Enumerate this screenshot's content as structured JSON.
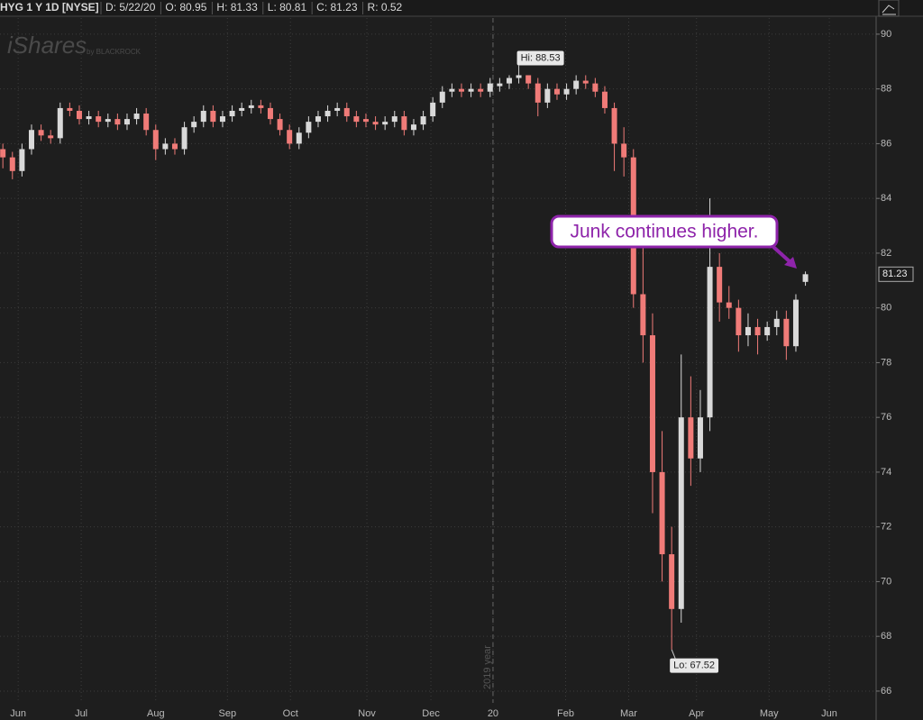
{
  "header": {
    "symbol": "HYG 1 Y 1D [NYSE]",
    "fields": [
      "D: 5/22/20",
      "O: 80.95",
      "H: 81.33",
      "L: 80.81",
      "C: 81.23",
      "R: 0.52"
    ],
    "watermark": "iShares",
    "watermark_sub": "by BLACKROCK"
  },
  "chart_data": {
    "type": "candlestick",
    "x": [
      0,
      1,
      2,
      3,
      4,
      5,
      6,
      7,
      8,
      9,
      10,
      11,
      12,
      13,
      14,
      15,
      16,
      17,
      18,
      19,
      20,
      21,
      22,
      23,
      24,
      25,
      26,
      27,
      28,
      29,
      30,
      31,
      32,
      33,
      34,
      35,
      36,
      37,
      38,
      39,
      40,
      41,
      42,
      43,
      44,
      45,
      46,
      47,
      48,
      49,
      50,
      51,
      52,
      53,
      54,
      55,
      56,
      57,
      58,
      59,
      60,
      61,
      62,
      63,
      64,
      65,
      66,
      67,
      68,
      69,
      70,
      71,
      72,
      73,
      74,
      75,
      76,
      77,
      78,
      79,
      80,
      81,
      82,
      83,
      84
    ],
    "open": [
      85.8,
      85.5,
      85.0,
      85.8,
      86.5,
      86.3,
      86.2,
      87.3,
      87.2,
      86.9,
      87.0,
      86.8,
      86.9,
      86.7,
      86.9,
      87.1,
      86.5,
      85.8,
      86.0,
      85.8,
      86.6,
      86.8,
      87.2,
      86.8,
      87.0,
      87.2,
      87.3,
      87.4,
      87.3,
      86.9,
      86.5,
      86.0,
      86.4,
      86.8,
      87.0,
      87.2,
      87.3,
      87.0,
      86.9,
      86.8,
      86.7,
      86.8,
      87.0,
      86.5,
      86.7,
      87.0,
      87.5,
      87.9,
      88.0,
      87.9,
      88.0,
      87.9,
      88.1,
      88.2,
      88.4,
      88.5,
      88.2,
      87.5,
      88.0,
      87.8,
      88.0,
      88.3,
      88.2,
      87.9,
      87.3,
      86.0,
      85.5,
      80.5,
      79.0,
      74.0,
      71.0,
      69.0,
      76.0,
      74.5,
      76.0,
      81.5,
      80.2,
      80.0,
      79.0,
      79.3,
      79.0,
      79.3,
      79.6,
      78.6,
      80.95
    ],
    "high": [
      86.0,
      85.7,
      86.0,
      86.7,
      86.7,
      86.5,
      87.5,
      87.5,
      87.4,
      87.2,
      87.2,
      87.1,
      87.1,
      87.1,
      87.3,
      87.3,
      86.7,
      86.2,
      86.2,
      86.8,
      87.0,
      87.4,
      87.4,
      87.2,
      87.4,
      87.5,
      87.6,
      87.6,
      87.5,
      87.1,
      86.7,
      86.6,
      87.0,
      87.2,
      87.4,
      87.5,
      87.5,
      87.2,
      87.1,
      87.0,
      87.0,
      87.2,
      87.2,
      86.9,
      87.2,
      87.7,
      88.1,
      88.2,
      88.2,
      88.2,
      88.2,
      88.4,
      88.4,
      88.5,
      88.53,
      88.5,
      88.4,
      88.2,
      88.2,
      88.2,
      88.5,
      88.5,
      88.4,
      88.1,
      87.5,
      86.6,
      85.8,
      82.5,
      79.8,
      75.5,
      72.0,
      78.3,
      77.5,
      77.0,
      84.0,
      82.0,
      80.8,
      80.3,
      79.8,
      79.6,
      79.5,
      79.9,
      79.9,
      80.5,
      81.33
    ],
    "low": [
      85.1,
      84.7,
      84.8,
      85.6,
      86.1,
      86.0,
      86.0,
      87.0,
      86.7,
      86.7,
      86.6,
      86.6,
      86.5,
      86.5,
      86.7,
      86.3,
      85.4,
      85.6,
      85.6,
      85.6,
      86.4,
      86.6,
      86.6,
      86.6,
      86.8,
      87.0,
      87.1,
      87.1,
      86.7,
      86.3,
      85.8,
      85.8,
      86.2,
      86.6,
      86.8,
      87.0,
      86.8,
      86.6,
      86.6,
      86.5,
      86.5,
      86.6,
      86.3,
      86.3,
      86.5,
      86.8,
      87.3,
      87.7,
      87.7,
      87.7,
      87.7,
      87.7,
      87.9,
      88.0,
      88.2,
      88.0,
      87.0,
      87.3,
      87.6,
      87.6,
      87.8,
      88.0,
      87.7,
      87.1,
      85.0,
      84.8,
      80.0,
      78.0,
      72.5,
      70.0,
      67.52,
      68.5,
      73.5,
      74.0,
      75.5,
      79.5,
      79.6,
      78.4,
      78.6,
      78.3,
      78.8,
      79.0,
      78.1,
      78.4,
      80.81
    ],
    "close": [
      85.5,
      85.0,
      85.8,
      86.5,
      86.3,
      86.2,
      87.3,
      87.2,
      86.9,
      87.0,
      86.8,
      86.9,
      86.7,
      86.9,
      87.1,
      86.5,
      85.8,
      86.0,
      85.8,
      86.6,
      86.8,
      87.2,
      86.8,
      87.0,
      87.2,
      87.3,
      87.4,
      87.3,
      86.9,
      86.5,
      86.0,
      86.4,
      86.8,
      87.0,
      87.2,
      87.3,
      87.0,
      86.8,
      86.8,
      86.7,
      86.8,
      87.0,
      86.5,
      86.7,
      87.0,
      87.5,
      87.9,
      88.0,
      87.9,
      88.0,
      87.9,
      88.2,
      88.2,
      88.4,
      88.5,
      88.2,
      87.5,
      88.0,
      87.8,
      88.0,
      88.3,
      88.2,
      87.9,
      87.3,
      86.0,
      85.5,
      80.5,
      79.0,
      74.0,
      71.0,
      69.0,
      76.0,
      74.5,
      76.0,
      81.5,
      80.2,
      80.0,
      79.0,
      79.3,
      79.0,
      79.3,
      79.6,
      78.6,
      80.3,
      81.23
    ],
    "up_color": "#d9d9d9",
    "down_color": "#f07b78",
    "xlim": [
      -0.3,
      91.4
    ],
    "xticks": [
      {
        "value": 1.6,
        "label": "Jun"
      },
      {
        "value": 8.2,
        "label": "Jul"
      },
      {
        "value": 16.0,
        "label": "Aug"
      },
      {
        "value": 23.5,
        "label": "Sep"
      },
      {
        "value": 30.1,
        "label": "Oct"
      },
      {
        "value": 38.1,
        "label": "Nov"
      },
      {
        "value": 44.8,
        "label": "Dec"
      },
      {
        "value": 51.3,
        "label": "20"
      },
      {
        "value": 58.9,
        "label": "Feb"
      },
      {
        "value": 65.5,
        "label": "Mar"
      },
      {
        "value": 72.6,
        "label": "Apr"
      },
      {
        "value": 80.2,
        "label": "May"
      },
      {
        "value": 86.5,
        "label": "Jun"
      }
    ],
    "ylim": [
      65.57,
      90.59
    ],
    "yticks": [
      66,
      68,
      70,
      72,
      74,
      76,
      78,
      80,
      82,
      84,
      86,
      88,
      90
    ],
    "grid": true,
    "year_divider": {
      "tick": 7,
      "label": "2019 year"
    },
    "annotations": {
      "high": "Hi: 88.53",
      "low": "Lo: 67.52",
      "callout": "Junk continues higher."
    }
  }
}
